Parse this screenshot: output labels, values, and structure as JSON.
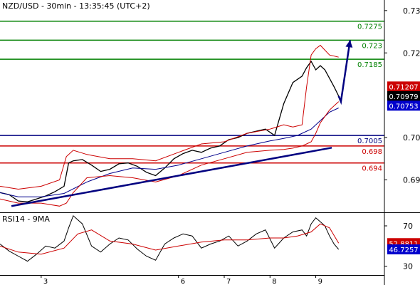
{
  "chart_data": [
    {
      "type": "line",
      "title": "NZD/USD - 30min - 13:35:45 (UTC+2)",
      "ylim": [
        0.6825,
        0.7325
      ],
      "y_ticks": [
        {
          "value": 0.73,
          "label": "0.73"
        },
        {
          "value": 0.72,
          "label": "0.72"
        },
        {
          "value": 0.7,
          "label": "0.70"
        },
        {
          "value": 0.69,
          "label": "0.69"
        }
      ],
      "x_ticks": [
        {
          "value": 3,
          "label": "3"
        },
        {
          "value": 6,
          "label": "6"
        },
        {
          "value": 7,
          "label": "7"
        },
        {
          "value": 8,
          "label": "8"
        },
        {
          "value": 9,
          "label": "9"
        }
      ],
      "xlim": [
        2.1,
        10.5
      ],
      "grid": false,
      "levels": [
        {
          "value": 0.7275,
          "label": "0.7275",
          "color": "#008000"
        },
        {
          "value": 0.723,
          "label": "0.723",
          "color": "#008000"
        },
        {
          "value": 0.7185,
          "label": "0.7185",
          "color": "#008000"
        },
        {
          "value": 0.7005,
          "label": "0.7005",
          "color": "#000080"
        },
        {
          "value": 0.698,
          "label": "0.698",
          "color": "#cc0000"
        },
        {
          "value": 0.694,
          "label": "0.694",
          "color": "#cc0000"
        }
      ],
      "price_badges": [
        {
          "value": 0.71207,
          "label": "0.71207",
          "bg": "#cc0000",
          "fg": "#ffffff"
        },
        {
          "value": 0.70979,
          "label": "0.70979",
          "bg": "#000000",
          "fg": "#ffffff"
        },
        {
          "value": 0.70753,
          "label": "0.70753",
          "bg": "#0000cc",
          "fg": "#ffffff"
        }
      ],
      "trendline": {
        "from": [
          2.35,
          0.6838
        ],
        "to": [
          9.35,
          0.6976
        ],
        "color": "#000080"
      },
      "projection": {
        "points": [
          [
            9.55,
            0.7085
          ],
          [
            9.75,
            0.723
          ]
        ],
        "color": "#000080"
      },
      "series": [
        {
          "name": "price",
          "color": "#000000",
          "x": [
            2.1,
            2.3,
            2.5,
            2.7,
            2.9,
            3.1,
            3.3,
            3.5,
            3.6,
            3.7,
            3.9,
            4.1,
            4.3,
            4.5,
            4.7,
            4.9,
            5.1,
            5.3,
            5.5,
            5.7,
            5.9,
            6.1,
            6.3,
            6.5,
            6.7,
            6.9,
            7.1,
            7.3,
            7.5,
            7.7,
            7.9,
            8.1,
            8.3,
            8.5,
            8.7,
            8.8,
            8.9,
            9.0,
            9.1,
            9.2,
            9.3,
            9.4,
            9.5
          ],
          "values": [
            0.687,
            0.6865,
            0.685,
            0.6848,
            0.6855,
            0.6862,
            0.6872,
            0.6885,
            0.694,
            0.6945,
            0.6948,
            0.6935,
            0.692,
            0.6925,
            0.6938,
            0.694,
            0.6932,
            0.6918,
            0.691,
            0.6928,
            0.695,
            0.6962,
            0.697,
            0.6965,
            0.6975,
            0.698,
            0.6995,
            0.7,
            0.701,
            0.7015,
            0.702,
            0.7005,
            0.708,
            0.713,
            0.7145,
            0.7165,
            0.718,
            0.716,
            0.717,
            0.716,
            0.714,
            0.712,
            0.7098
          ]
        },
        {
          "name": "ma",
          "color": "#00008b",
          "x": [
            2.1,
            2.5,
            3.0,
            3.5,
            4.0,
            4.5,
            5.0,
            5.5,
            6.0,
            6.5,
            7.0,
            7.5,
            8.0,
            8.3,
            8.6,
            8.9,
            9.1,
            9.3,
            9.5
          ],
          "values": [
            0.687,
            0.686,
            0.686,
            0.6868,
            0.6895,
            0.6915,
            0.6928,
            0.6925,
            0.6935,
            0.695,
            0.6965,
            0.698,
            0.6992,
            0.6998,
            0.7005,
            0.702,
            0.704,
            0.706,
            0.707
          ]
        },
        {
          "name": "band-upper",
          "color": "#cc0000",
          "x": [
            2.1,
            2.5,
            3.0,
            3.4,
            3.55,
            3.7,
            4.0,
            4.5,
            5.0,
            5.5,
            6.0,
            6.5,
            7.0,
            7.5,
            8.0,
            8.3,
            8.5,
            8.7,
            8.8,
            8.9,
            9.0,
            9.1,
            9.3,
            9.5
          ],
          "values": [
            0.6885,
            0.6878,
            0.6885,
            0.69,
            0.6955,
            0.697,
            0.696,
            0.695,
            0.695,
            0.6945,
            0.6965,
            0.6985,
            0.699,
            0.701,
            0.702,
            0.703,
            0.7025,
            0.703,
            0.712,
            0.7195,
            0.721,
            0.7218,
            0.7195,
            0.719
          ]
        },
        {
          "name": "band-lower",
          "color": "#cc0000",
          "x": [
            2.1,
            2.5,
            3.0,
            3.4,
            3.55,
            3.7,
            4.0,
            4.5,
            5.0,
            5.5,
            6.0,
            6.5,
            7.0,
            7.5,
            8.0,
            8.3,
            8.5,
            8.7,
            8.8,
            8.9,
            9.0,
            9.1,
            9.3,
            9.5
          ],
          "values": [
            0.6855,
            0.6845,
            0.6845,
            0.6838,
            0.6845,
            0.687,
            0.6905,
            0.691,
            0.6905,
            0.6895,
            0.691,
            0.6935,
            0.695,
            0.6965,
            0.697,
            0.6972,
            0.6975,
            0.698,
            0.6985,
            0.699,
            0.701,
            0.7035,
            0.7065,
            0.7085
          ]
        }
      ]
    },
    {
      "type": "line",
      "title": "RSI14 - 9MA",
      "ylim": [
        22,
        82
      ],
      "y_ticks": [
        {
          "value": 70,
          "label": "70"
        },
        {
          "value": 30,
          "label": "30"
        }
      ],
      "grid": false,
      "price_badges": [
        {
          "value": 52.8811,
          "label": "52.8811",
          "bg": "#cc0000",
          "fg": "#ffffff"
        },
        {
          "value": 46.7257,
          "label": "46.7257",
          "bg": "#0000cc",
          "fg": "#ffffff"
        }
      ],
      "series": [
        {
          "name": "rsi",
          "color": "#000000",
          "x": [
            2.1,
            2.3,
            2.5,
            2.7,
            2.9,
            3.1,
            3.3,
            3.5,
            3.6,
            3.7,
            3.9,
            4.1,
            4.3,
            4.5,
            4.7,
            4.9,
            5.1,
            5.3,
            5.5,
            5.7,
            5.9,
            6.1,
            6.3,
            6.5,
            6.7,
            6.9,
            7.1,
            7.3,
            7.5,
            7.7,
            7.9,
            8.1,
            8.3,
            8.5,
            8.7,
            8.8,
            8.9,
            9.0,
            9.1,
            9.2,
            9.3,
            9.4,
            9.5
          ],
          "values": [
            52,
            45,
            40,
            35,
            42,
            50,
            48,
            55,
            68,
            80,
            72,
            50,
            44,
            52,
            58,
            56,
            47,
            40,
            36,
            52,
            58,
            62,
            60,
            48,
            52,
            55,
            60,
            50,
            55,
            62,
            66,
            48,
            58,
            64,
            66,
            60,
            72,
            78,
            74,
            70,
            60,
            52,
            46.7
          ]
        },
        {
          "name": "rsi-ma",
          "color": "#cc0000",
          "x": [
            2.1,
            2.5,
            3.0,
            3.5,
            3.8,
            4.1,
            4.5,
            5.0,
            5.5,
            6.0,
            6.5,
            7.0,
            7.5,
            8.0,
            8.3,
            8.6,
            8.9,
            9.1,
            9.3,
            9.5
          ],
          "values": [
            50,
            44,
            42,
            48,
            62,
            66,
            55,
            52,
            46,
            50,
            54,
            56,
            56,
            58,
            58,
            60,
            64,
            72,
            68,
            52.9
          ]
        }
      ]
    }
  ]
}
